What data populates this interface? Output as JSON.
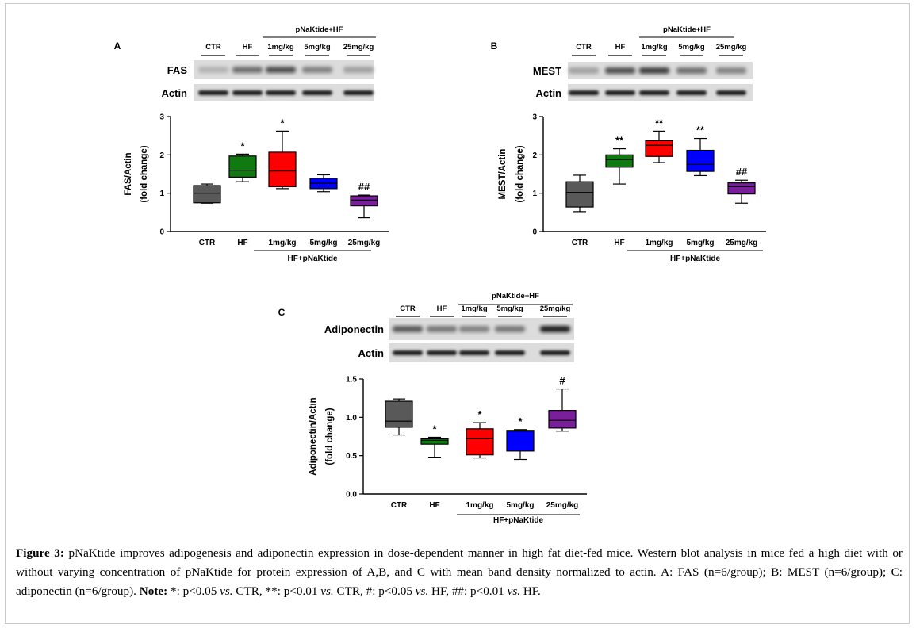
{
  "panels": [
    {
      "id": "A",
      "letter": "A",
      "blot": {
        "group_label": "pNaKtide+HF",
        "lane_labels": [
          "CTR",
          "HF",
          "1mg/kg",
          "5mg/kg",
          "25mg/kg"
        ],
        "row_labels": [
          "FAS",
          "Actin"
        ]
      }
    },
    {
      "id": "B",
      "letter": "B",
      "blot": {
        "group_label": "pNaKtide+HF",
        "lane_labels": [
          "CTR",
          "HF",
          "1mg/kg",
          "5mg/kg",
          "25mg/kg"
        ],
        "row_labels": [
          "MEST",
          "Actin"
        ]
      }
    },
    {
      "id": "C",
      "letter": "C",
      "blot": {
        "group_label": "pNaKtide+HF",
        "lane_labels": [
          "CTR",
          "HF",
          "1mg/kg",
          "5mg/kg",
          "25mg/kg"
        ],
        "row_labels": [
          "Adiponectin",
          "Actin"
        ]
      }
    }
  ],
  "chart_data": [
    {
      "panel": "A",
      "type": "box",
      "ylabel_line1": "FAS/Actin",
      "ylabel_line2": "(fold change)",
      "ylim": [
        0,
        3
      ],
      "yticks": [
        "0",
        "1",
        "2",
        "3"
      ],
      "categories": [
        "CTR",
        "HF",
        "1mg/kg",
        "5mg/kg",
        "25mg/kg"
      ],
      "group_label": "HF+pNaKtide",
      "colors": [
        "#595959",
        "#0f7a0f",
        "#ff0000",
        "#0000ff",
        "#7a1f9a"
      ],
      "boxes": [
        {
          "min": 0.74,
          "q1": 0.75,
          "median": 1.0,
          "q3": 1.2,
          "max": 1.24,
          "annotation": ""
        },
        {
          "min": 1.3,
          "q1": 1.42,
          "median": 1.6,
          "q3": 1.97,
          "max": 2.02,
          "annotation": "*"
        },
        {
          "min": 1.12,
          "q1": 1.17,
          "median": 1.58,
          "q3": 2.07,
          "max": 2.62,
          "annotation": "*"
        },
        {
          "min": 1.04,
          "q1": 1.12,
          "median": 1.26,
          "q3": 1.39,
          "max": 1.48,
          "annotation": ""
        },
        {
          "min": 0.36,
          "q1": 0.67,
          "median": 0.82,
          "q3": 0.93,
          "max": 0.95,
          "annotation": "##"
        }
      ]
    },
    {
      "panel": "B",
      "type": "box",
      "ylabel_line1": "MEST/Actin",
      "ylabel_line2": "(fold change)",
      "ylim": [
        0,
        3
      ],
      "yticks": [
        "0",
        "1",
        "2",
        "3"
      ],
      "categories": [
        "CTR",
        "HF",
        "1mg/kg",
        "5mg/kg",
        "25mg/kg"
      ],
      "group_label": "HF+pNaKtide",
      "colors": [
        "#595959",
        "#0f7a0f",
        "#ff0000",
        "#0000ff",
        "#7a1f9a"
      ],
      "boxes": [
        {
          "min": 0.52,
          "q1": 0.64,
          "median": 1.02,
          "q3": 1.3,
          "max": 1.47,
          "annotation": ""
        },
        {
          "min": 1.24,
          "q1": 1.68,
          "median": 1.88,
          "q3": 2.0,
          "max": 2.16,
          "annotation": "**"
        },
        {
          "min": 1.8,
          "q1": 1.96,
          "median": 2.25,
          "q3": 2.37,
          "max": 2.62,
          "annotation": "**"
        },
        {
          "min": 1.46,
          "q1": 1.57,
          "median": 1.75,
          "q3": 2.12,
          "max": 2.43,
          "annotation": "**"
        },
        {
          "min": 0.74,
          "q1": 0.98,
          "median": 1.17,
          "q3": 1.27,
          "max": 1.34,
          "annotation": "##"
        }
      ]
    },
    {
      "panel": "C",
      "type": "box",
      "ylabel_line1": "Adiponectin/Actin",
      "ylabel_line2": "(fold change)",
      "ylim": [
        0,
        1.5
      ],
      "yticks": [
        "0.0",
        "0.5",
        "1.0",
        "1.5"
      ],
      "categories": [
        "CTR",
        "HF",
        "1mg/kg",
        "5mg/kg",
        "25mg/kg"
      ],
      "group_label": "HF+pNaKtide",
      "colors": [
        "#595959",
        "#0f7a0f",
        "#ff0000",
        "#0000ff",
        "#7a1f9a"
      ],
      "boxes": [
        {
          "min": 0.77,
          "q1": 0.87,
          "median": 0.95,
          "q3": 1.21,
          "max": 1.24,
          "annotation": ""
        },
        {
          "min": 0.48,
          "q1": 0.65,
          "median": 0.7,
          "q3": 0.72,
          "max": 0.74,
          "annotation": "*"
        },
        {
          "min": 0.47,
          "q1": 0.51,
          "median": 0.72,
          "q3": 0.85,
          "max": 0.93,
          "annotation": "*"
        },
        {
          "min": 0.45,
          "q1": 0.56,
          "median": 0.82,
          "q3": 0.83,
          "max": 0.84,
          "annotation": "*"
        },
        {
          "min": 0.82,
          "q1": 0.86,
          "median": 0.96,
          "q3": 1.09,
          "max": 1.37,
          "annotation": "#"
        }
      ]
    }
  ],
  "caption": {
    "label": "Figure 3:",
    "text_1": " pNaKtide improves adipogenesis and adiponectin expression in dose-dependent manner in high fat diet-fed mice. Western blot analysis in mice fed a high diet with or without varying concentration of pNaKtide for protein expression of A,B, and C with mean band density normalized to actin. A: FAS (n=6/group); B: MEST (n=6/group); C: adiponectin (n=6/group). ",
    "note_label": "Note:",
    "s1": " *: p<0.05 ",
    "vs1": "vs.",
    "s2": " CTR, **: p<0.01 ",
    "vs2": "vs.",
    "s3": " CTR, #: p<0.05 ",
    "vs3": "vs.",
    "s4": " HF, ##: p<0.01 ",
    "vs4": "vs.",
    "s5": " HF."
  }
}
